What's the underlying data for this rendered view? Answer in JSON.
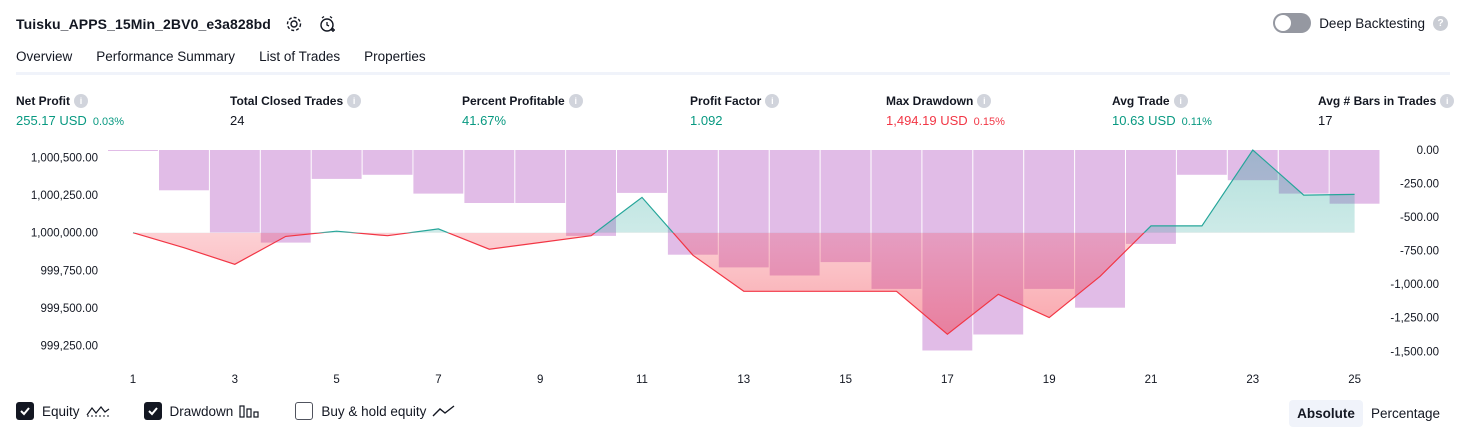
{
  "header": {
    "title": "Tuisku_APPS_15Min_2BV0_e3a828bd",
    "settings_icon": "gear-icon",
    "add_alert_icon": "alarm-clock-plus-icon"
  },
  "deep_backtesting": {
    "label": "Deep Backtesting",
    "enabled": false,
    "help_icon": "question-icon"
  },
  "tabs": [
    {
      "label": "Overview",
      "active": true
    },
    {
      "label": "Performance Summary",
      "active": false
    },
    {
      "label": "List of Trades",
      "active": false
    },
    {
      "label": "Properties",
      "active": false
    }
  ],
  "metrics": [
    {
      "label": "Net Profit",
      "value": "255.17 USD",
      "pct": "0.03%",
      "color": "green"
    },
    {
      "label": "Total Closed Trades",
      "value": "24",
      "pct": "",
      "color": "dark"
    },
    {
      "label": "Percent Profitable",
      "value": "41.67%",
      "pct": "",
      "color": "green"
    },
    {
      "label": "Profit Factor",
      "value": "1.092",
      "pct": "",
      "color": "green"
    },
    {
      "label": "Max Drawdown",
      "value": "1,494.19 USD",
      "pct": "0.15%",
      "color": "red"
    },
    {
      "label": "Avg Trade",
      "value": "10.63 USD",
      "pct": "0.11%",
      "color": "green"
    },
    {
      "label": "Avg # Bars in Trades",
      "value": "17",
      "pct": "",
      "color": "dark"
    }
  ],
  "colors": {
    "equity_up": "#26a69a",
    "equity_down": "#f23645",
    "drawdown_bar": "#ce93d8",
    "text": "#131722"
  },
  "chart_data": {
    "type": "line+bar",
    "x_ticks": [
      "1",
      "3",
      "5",
      "7",
      "9",
      "11",
      "13",
      "15",
      "17",
      "19",
      "21",
      "23",
      "25"
    ],
    "left_axis": {
      "ticks": [
        "1,000,500.00",
        "1,000,250.00",
        "1,000,000.00",
        "999,750.00",
        "999,500.00",
        "999,250.00"
      ],
      "ylim": [
        999100,
        1000550
      ]
    },
    "right_axis": {
      "ticks": [
        "0.00",
        "-250.00",
        "-500.00",
        "-750.00",
        "-1,000.00",
        "-1,250.00",
        "-1,500.00"
      ],
      "ylim": [
        -1550,
        0
      ]
    },
    "series": [
      {
        "name": "Equity",
        "x": [
          1,
          2,
          3,
          4,
          5,
          6,
          7,
          8,
          9,
          10,
          11,
          12,
          13,
          14,
          15,
          16,
          17,
          18,
          19,
          20,
          21,
          22,
          23,
          24,
          25
        ],
        "values": [
          1000000,
          999900,
          999790,
          999975,
          1000010,
          999980,
          1000025,
          999890,
          999935,
          999980,
          1000235,
          999850,
          999610,
          999610,
          999610,
          999610,
          999325,
          999590,
          999435,
          999710,
          1000045,
          1000045,
          1000550,
          1000250,
          1000255
        ]
      },
      {
        "name": "Drawdown",
        "x": [
          1,
          2,
          3,
          4,
          5,
          6,
          7,
          8,
          9,
          10,
          11,
          12,
          13,
          14,
          15,
          16,
          17,
          18,
          19,
          20,
          21,
          22,
          23,
          24,
          25
        ],
        "values": [
          -5,
          -300,
          -615,
          -690,
          -215,
          -185,
          -325,
          -395,
          -395,
          -640,
          -320,
          -780,
          -875,
          -935,
          -835,
          -1035,
          -1494,
          -1375,
          -1035,
          -1175,
          -700,
          -185,
          -225,
          -325,
          -400
        ]
      }
    ]
  },
  "footer": {
    "toggles": [
      {
        "label": "Equity",
        "checked": true,
        "icon": "equity-line-icon"
      },
      {
        "label": "Drawdown",
        "checked": true,
        "icon": "drawdown-bars-icon"
      },
      {
        "label": "Buy & hold equity",
        "checked": false,
        "icon": "buy-hold-line-icon"
      }
    ],
    "mode_options": [
      {
        "label": "Absolute",
        "active": true
      },
      {
        "label": "Percentage",
        "active": false
      }
    ]
  }
}
